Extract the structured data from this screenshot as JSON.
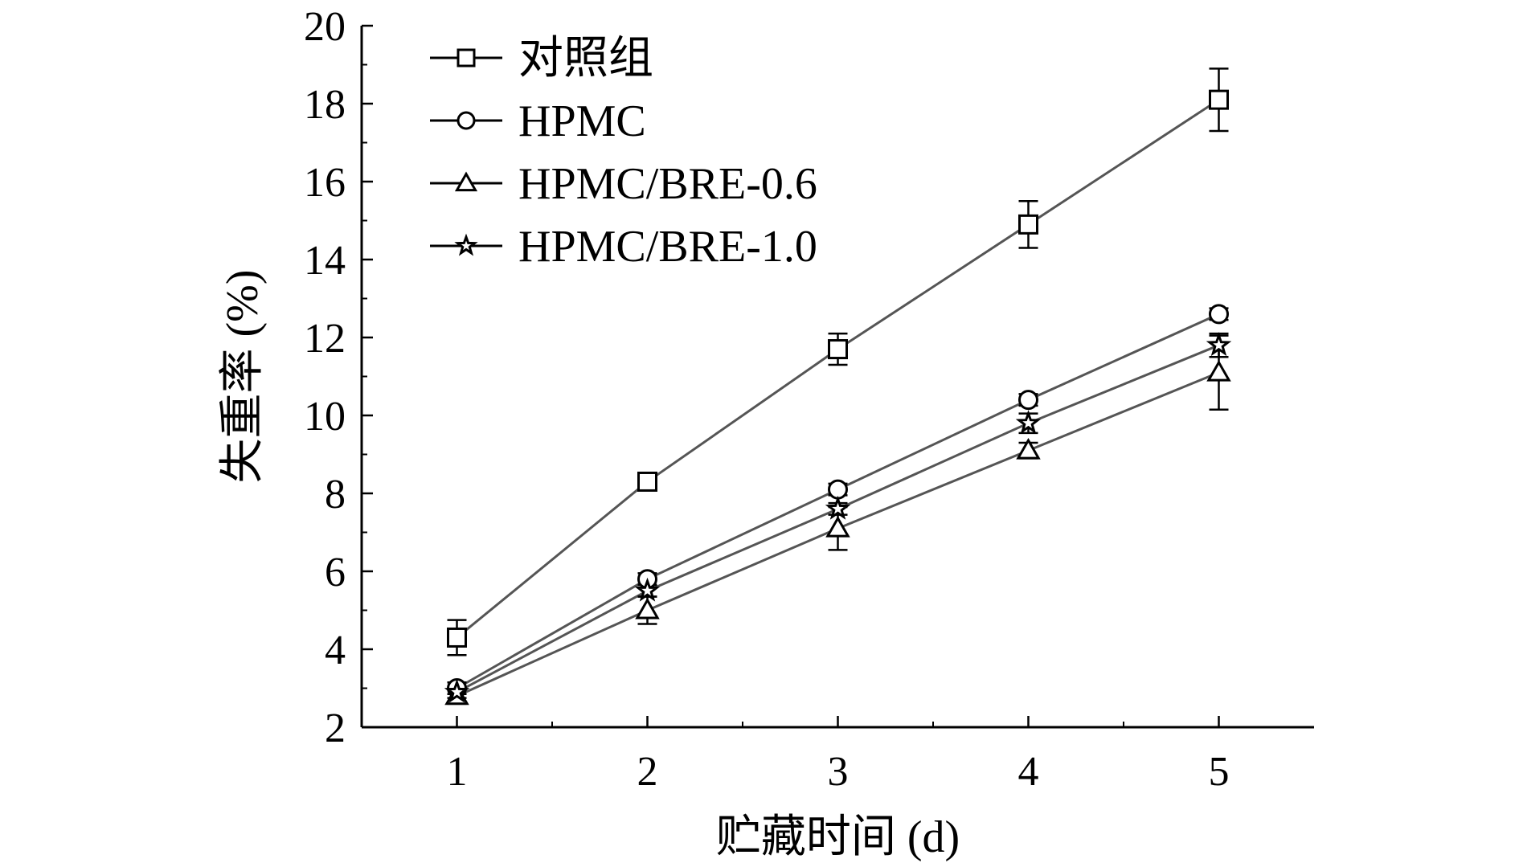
{
  "chart_data": {
    "type": "line",
    "xlabel": "贮藏时间 (d)",
    "ylabel": "失重率 (%)",
    "x": [
      1,
      2,
      3,
      4,
      5
    ],
    "xlim": [
      0.5,
      5.5
    ],
    "ylim": [
      2,
      20
    ],
    "xticks": [
      1,
      2,
      3,
      4,
      5
    ],
    "yticks": [
      2,
      4,
      6,
      8,
      10,
      12,
      14,
      16,
      18,
      20
    ],
    "grid": false,
    "legend_position": "top-left",
    "series": [
      {
        "name": "对照组",
        "marker": "square",
        "values": [
          4.3,
          8.3,
          11.7,
          14.9,
          18.1
        ],
        "errors": [
          0.45,
          0.2,
          0.4,
          0.6,
          0.8
        ]
      },
      {
        "name": "HPMC",
        "marker": "circle",
        "values": [
          3.0,
          5.8,
          8.1,
          10.4,
          12.6
        ],
        "errors": [
          0.15,
          0.15,
          0.15,
          0.15,
          0.15
        ]
      },
      {
        "name": "HPMC/BRE-0.6",
        "marker": "triangle",
        "values": [
          2.8,
          5.0,
          7.1,
          9.1,
          11.1
        ],
        "errors": [
          0.2,
          0.35,
          0.55,
          0.2,
          0.95
        ]
      },
      {
        "name": "HPMC/BRE-1.0",
        "marker": "star",
        "values": [
          2.9,
          5.5,
          7.6,
          9.8,
          11.8
        ],
        "errors": [
          0.15,
          0.15,
          0.15,
          0.25,
          0.3
        ]
      }
    ],
    "line_color": "#555555",
    "marker_color": "#000000"
  }
}
